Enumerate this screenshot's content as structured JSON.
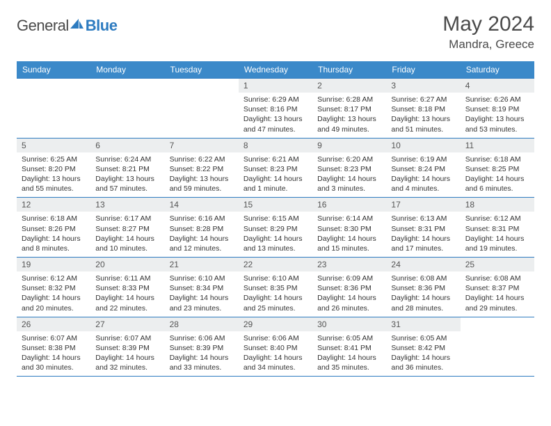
{
  "brand": {
    "part1": "General",
    "part2": "Blue"
  },
  "title": "May 2024",
  "location": "Mandra, Greece",
  "dayHeaders": [
    "Sunday",
    "Monday",
    "Tuesday",
    "Wednesday",
    "Thursday",
    "Friday",
    "Saturday"
  ],
  "colors": {
    "headerBg": "#3b89c9",
    "border": "#2d7bc0",
    "dayNumBg": "#eceeef",
    "text": "#4a4a4a"
  },
  "weeks": [
    [
      null,
      null,
      null,
      {
        "n": "1",
        "sr": "6:29 AM",
        "ss": "8:16 PM",
        "dl": "13 hours and 47 minutes."
      },
      {
        "n": "2",
        "sr": "6:28 AM",
        "ss": "8:17 PM",
        "dl": "13 hours and 49 minutes."
      },
      {
        "n": "3",
        "sr": "6:27 AM",
        "ss": "8:18 PM",
        "dl": "13 hours and 51 minutes."
      },
      {
        "n": "4",
        "sr": "6:26 AM",
        "ss": "8:19 PM",
        "dl": "13 hours and 53 minutes."
      }
    ],
    [
      {
        "n": "5",
        "sr": "6:25 AM",
        "ss": "8:20 PM",
        "dl": "13 hours and 55 minutes."
      },
      {
        "n": "6",
        "sr": "6:24 AM",
        "ss": "8:21 PM",
        "dl": "13 hours and 57 minutes."
      },
      {
        "n": "7",
        "sr": "6:22 AM",
        "ss": "8:22 PM",
        "dl": "13 hours and 59 minutes."
      },
      {
        "n": "8",
        "sr": "6:21 AM",
        "ss": "8:23 PM",
        "dl": "14 hours and 1 minute."
      },
      {
        "n": "9",
        "sr": "6:20 AM",
        "ss": "8:23 PM",
        "dl": "14 hours and 3 minutes."
      },
      {
        "n": "10",
        "sr": "6:19 AM",
        "ss": "8:24 PM",
        "dl": "14 hours and 4 minutes."
      },
      {
        "n": "11",
        "sr": "6:18 AM",
        "ss": "8:25 PM",
        "dl": "14 hours and 6 minutes."
      }
    ],
    [
      {
        "n": "12",
        "sr": "6:18 AM",
        "ss": "8:26 PM",
        "dl": "14 hours and 8 minutes."
      },
      {
        "n": "13",
        "sr": "6:17 AM",
        "ss": "8:27 PM",
        "dl": "14 hours and 10 minutes."
      },
      {
        "n": "14",
        "sr": "6:16 AM",
        "ss": "8:28 PM",
        "dl": "14 hours and 12 minutes."
      },
      {
        "n": "15",
        "sr": "6:15 AM",
        "ss": "8:29 PM",
        "dl": "14 hours and 13 minutes."
      },
      {
        "n": "16",
        "sr": "6:14 AM",
        "ss": "8:30 PM",
        "dl": "14 hours and 15 minutes."
      },
      {
        "n": "17",
        "sr": "6:13 AM",
        "ss": "8:31 PM",
        "dl": "14 hours and 17 minutes."
      },
      {
        "n": "18",
        "sr": "6:12 AM",
        "ss": "8:31 PM",
        "dl": "14 hours and 19 minutes."
      }
    ],
    [
      {
        "n": "19",
        "sr": "6:12 AM",
        "ss": "8:32 PM",
        "dl": "14 hours and 20 minutes."
      },
      {
        "n": "20",
        "sr": "6:11 AM",
        "ss": "8:33 PM",
        "dl": "14 hours and 22 minutes."
      },
      {
        "n": "21",
        "sr": "6:10 AM",
        "ss": "8:34 PM",
        "dl": "14 hours and 23 minutes."
      },
      {
        "n": "22",
        "sr": "6:10 AM",
        "ss": "8:35 PM",
        "dl": "14 hours and 25 minutes."
      },
      {
        "n": "23",
        "sr": "6:09 AM",
        "ss": "8:36 PM",
        "dl": "14 hours and 26 minutes."
      },
      {
        "n": "24",
        "sr": "6:08 AM",
        "ss": "8:36 PM",
        "dl": "14 hours and 28 minutes."
      },
      {
        "n": "25",
        "sr": "6:08 AM",
        "ss": "8:37 PM",
        "dl": "14 hours and 29 minutes."
      }
    ],
    [
      {
        "n": "26",
        "sr": "6:07 AM",
        "ss": "8:38 PM",
        "dl": "14 hours and 30 minutes."
      },
      {
        "n": "27",
        "sr": "6:07 AM",
        "ss": "8:39 PM",
        "dl": "14 hours and 32 minutes."
      },
      {
        "n": "28",
        "sr": "6:06 AM",
        "ss": "8:39 PM",
        "dl": "14 hours and 33 minutes."
      },
      {
        "n": "29",
        "sr": "6:06 AM",
        "ss": "8:40 PM",
        "dl": "14 hours and 34 minutes."
      },
      {
        "n": "30",
        "sr": "6:05 AM",
        "ss": "8:41 PM",
        "dl": "14 hours and 35 minutes."
      },
      {
        "n": "31",
        "sr": "6:05 AM",
        "ss": "8:42 PM",
        "dl": "14 hours and 36 minutes."
      },
      null
    ]
  ]
}
